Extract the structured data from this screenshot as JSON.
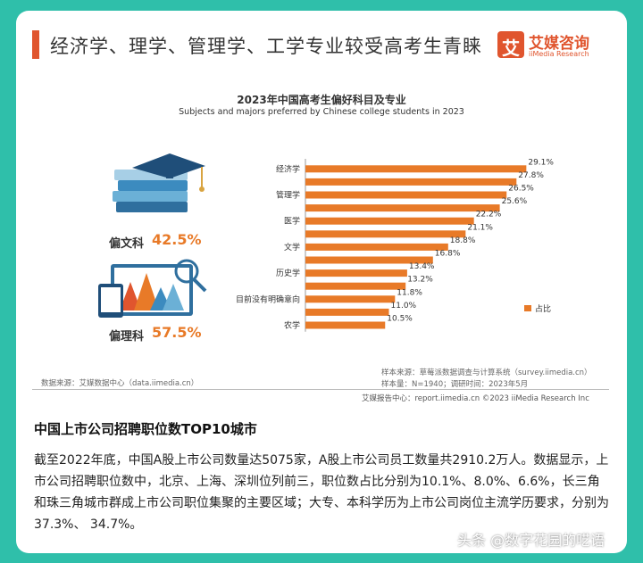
{
  "header": {
    "headline": "经济学、理学、管理学、工学专业较受高考生青睐",
    "logo_mark": "艾",
    "logo_cn": "艾媒咨询",
    "logo_en": "iiMedia Research"
  },
  "chart_data": {
    "type": "bar",
    "title": "2023年中国高考生偏好科目及专业",
    "subtitle": "Subjects and majors preferred by Chinese college students in 2023",
    "categories": [
      "经济学",
      "",
      "管理学",
      "",
      "医学",
      "",
      "文学",
      "",
      "历史学",
      "",
      "目前没有明确意向",
      "",
      "农学"
    ],
    "values": [
      29.1,
      27.8,
      26.5,
      25.6,
      22.2,
      21.1,
      18.8,
      16.8,
      13.4,
      13.2,
      11.8,
      11.0,
      10.5
    ],
    "value_labels": [
      "29.1%",
      "27.8%",
      "26.5%",
      "25.6%",
      "22.2%",
      "21.1%",
      "18.8%",
      "16.8%",
      "13.4%",
      "13.2%",
      "11.8%",
      "11.0%",
      "10.5%"
    ],
    "series": [
      {
        "name": "占比",
        "color": "#e87a28"
      }
    ],
    "xlim": [
      0,
      30
    ],
    "legend_position": "right",
    "grid": false
  },
  "segments": [
    {
      "label": "偏文科",
      "value": "42.5%"
    },
    {
      "label": "偏理科",
      "value": "57.5%"
    }
  ],
  "source": {
    "data_source": "数据来源：艾媒数据中心（data.iimedia.cn）",
    "sample_source": "样本来源：草莓派数据调查与计算系统（survey.iimedia.cn）",
    "sample_size": "样本量：N=1940；调研时间：2023年5月"
  },
  "footer": "艾媒报告中心：report.iimedia.cn  ©2023  iiMedia Research  Inc",
  "article": {
    "title": "中国上市公司招聘职位数TOP10城市",
    "body": "截至2022年底，中国A股上市公司数量达5075家，A股上市公司员工数量共2910.2万人。数据显示，上市公司招聘职位数中，北京、上海、深圳位列前三，职位数占比分别为10.1%、8.0%、6.6%，长三角和珠三角城市群成上市公司职位集聚的主要区域；大专、本科学历为上市公司岗位主流学历要求，分别为37.3%、 34.7%。"
  },
  "watermark": "头条 @数字花园的呓语",
  "colors": {
    "bar": "#e87a28",
    "accent": "#e0552e",
    "background": "#2fbfaa"
  }
}
